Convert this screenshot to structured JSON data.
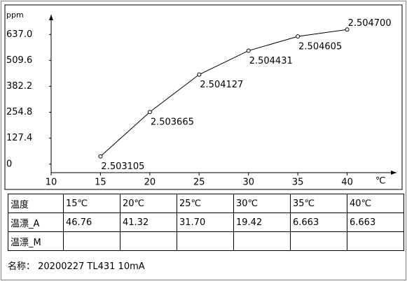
{
  "chart_data": {
    "type": "line",
    "y_label": "ppm",
    "x_label": "℃",
    "x": [
      15,
      20,
      25,
      30,
      35,
      40
    ],
    "series": [
      {
        "color": "#000000",
        "values": [
          38,
          256,
          440,
          557,
          627,
          661
        ],
        "point_labels": [
          "2.503105",
          "2.503665",
          "2.504127",
          "2.504431",
          "2.504605",
          "2.504700"
        ]
      }
    ],
    "xlim": [
      10,
      45
    ],
    "xticks": [
      10,
      15,
      20,
      25,
      30,
      35,
      40
    ],
    "ylim": [
      -42,
      734
    ],
    "yticks": [
      0,
      127.4,
      254.8,
      382.2,
      509.6,
      {
        "value": 637,
        "label": "637.0"
      }
    ]
  },
  "table": {
    "rows": [
      [
        "温度",
        "15℃",
        "20℃",
        "25℃",
        "30℃",
        "35℃",
        "40℃"
      ],
      [
        "温漂_A",
        "46.76",
        "41.32",
        "31.70",
        "19.42",
        "6.663",
        "6.663"
      ],
      [
        "温漂_M",
        null,
        null,
        null,
        null,
        null,
        null
      ]
    ]
  },
  "footer": "名称： 20200227 TL431 10mA"
}
